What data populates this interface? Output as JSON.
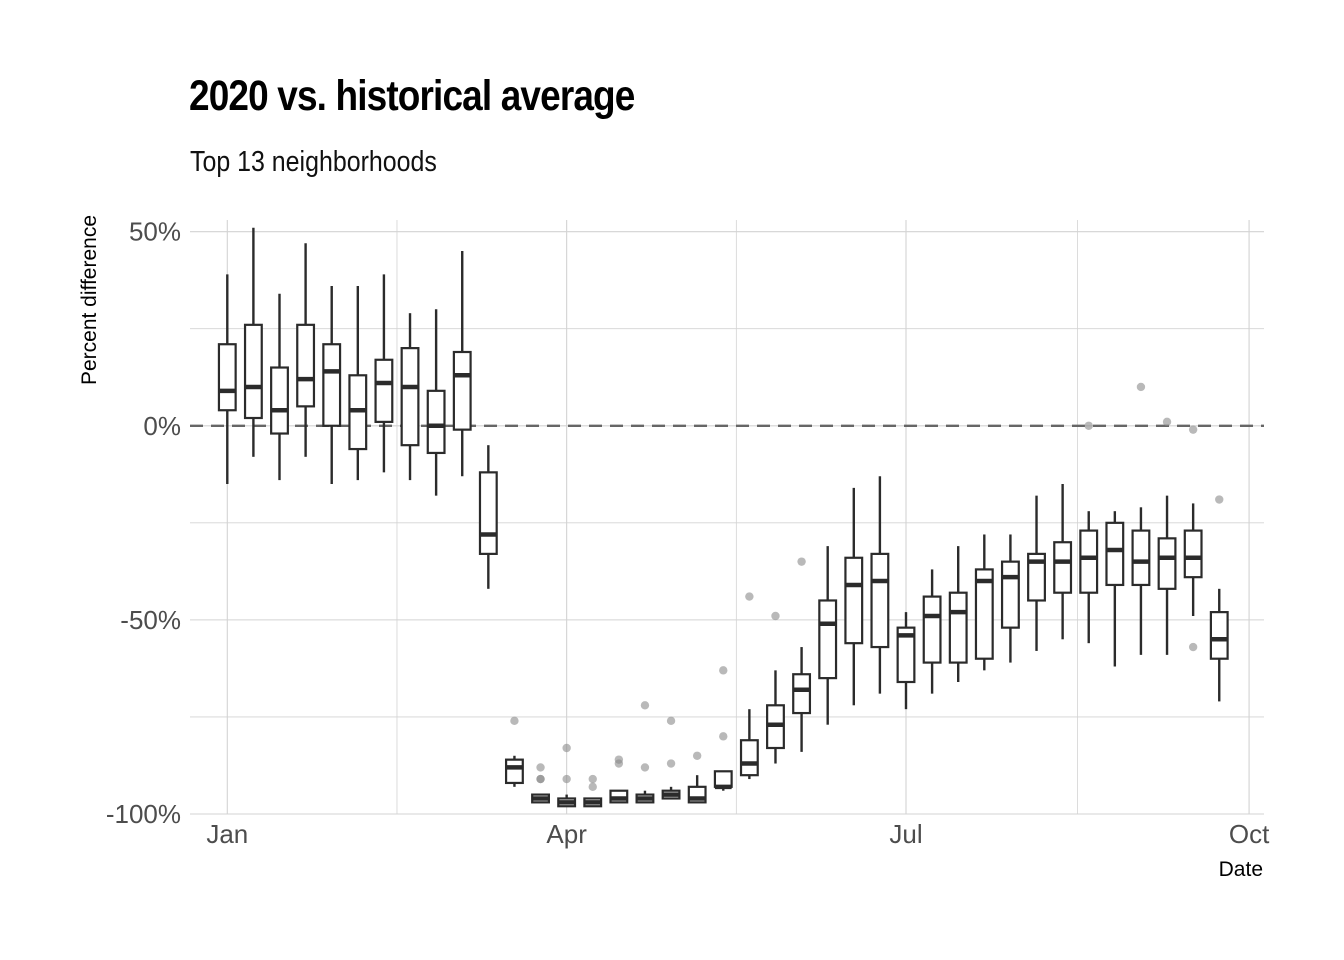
{
  "chart_data": {
    "type": "box",
    "title": "2020 vs. historical average",
    "subtitle": "Top 13 neighborhoods",
    "xlabel": "Date",
    "ylabel": "Percent difference",
    "x_ticks": [
      "Jan",
      "Apr",
      "Jul",
      "Oct"
    ],
    "x_tick_dates": [
      "2020-01-01",
      "2020-04-01",
      "2020-07-01",
      "2020-10-01"
    ],
    "x_range": [
      "2019-12-22",
      "2020-10-05"
    ],
    "y_ticks": [
      "50%",
      "0%",
      "-50%",
      "-100%"
    ],
    "y_tick_values": [
      50,
      0,
      -50,
      -100
    ],
    "ylim": [
      -100,
      53
    ],
    "reference_line": {
      "y": 0,
      "style": "dashed"
    },
    "grid": true,
    "colors": {
      "box": "#2b2b2b",
      "outlier": "#8a8a8a",
      "grid": "#d3d3d3",
      "reference": "#666666"
    },
    "boxes": [
      {
        "date": "2020-01-01",
        "min": -15,
        "q1": 4,
        "median": 9,
        "q3": 21,
        "max": 39,
        "outliers": []
      },
      {
        "date": "2020-01-08",
        "min": -8,
        "q1": 2,
        "median": 10,
        "q3": 26,
        "max": 51,
        "outliers": []
      },
      {
        "date": "2020-01-15",
        "min": -14,
        "q1": -2,
        "median": 4,
        "q3": 15,
        "max": 34,
        "outliers": []
      },
      {
        "date": "2020-01-22",
        "min": -8,
        "q1": 5,
        "median": 12,
        "q3": 26,
        "max": 47,
        "outliers": []
      },
      {
        "date": "2020-01-29",
        "min": -15,
        "q1": 0,
        "median": 14,
        "q3": 21,
        "max": 36,
        "outliers": []
      },
      {
        "date": "2020-02-05",
        "min": -14,
        "q1": -6,
        "median": 4,
        "q3": 13,
        "max": 36,
        "outliers": []
      },
      {
        "date": "2020-02-12",
        "min": -12,
        "q1": 1,
        "median": 11,
        "q3": 17,
        "max": 39,
        "outliers": []
      },
      {
        "date": "2020-02-19",
        "min": -14,
        "q1": -5,
        "median": 10,
        "q3": 20,
        "max": 29,
        "outliers": []
      },
      {
        "date": "2020-02-26",
        "min": -18,
        "q1": -7,
        "median": 0,
        "q3": 9,
        "max": 30,
        "outliers": []
      },
      {
        "date": "2020-03-04",
        "min": -13,
        "q1": -1,
        "median": 13,
        "q3": 19,
        "max": 45,
        "outliers": []
      },
      {
        "date": "2020-03-11",
        "min": -42,
        "q1": -33,
        "median": -28,
        "q3": -12,
        "max": -5,
        "outliers": []
      },
      {
        "date": "2020-03-18",
        "min": -93,
        "q1": -92,
        "median": -88,
        "q3": -86,
        "max": -85,
        "outliers": [
          -76
        ]
      },
      {
        "date": "2020-03-25",
        "min": -97,
        "q1": -97,
        "median": -96,
        "q3": -95,
        "max": -95,
        "outliers": [
          -88,
          -91,
          -91
        ]
      },
      {
        "date": "2020-04-01",
        "min": -98,
        "q1": -98,
        "median": -97,
        "q3": -96,
        "max": -95,
        "outliers": [
          -83,
          -91
        ]
      },
      {
        "date": "2020-04-08",
        "min": -98,
        "q1": -98,
        "median": -97,
        "q3": -96,
        "max": -96,
        "outliers": [
          -91,
          -93
        ]
      },
      {
        "date": "2020-04-15",
        "min": -97,
        "q1": -97,
        "median": -96,
        "q3": -94,
        "max": -94,
        "outliers": [
          -86,
          -87
        ]
      },
      {
        "date": "2020-04-22",
        "min": -97,
        "q1": -97,
        "median": -96,
        "q3": -95,
        "max": -94,
        "outliers": [
          -72,
          -88
        ]
      },
      {
        "date": "2020-04-29",
        "min": -96,
        "q1": -96,
        "median": -95,
        "q3": -94,
        "max": -93,
        "outliers": [
          -76,
          -87
        ]
      },
      {
        "date": "2020-05-06",
        "min": -97,
        "q1": -97,
        "median": -96,
        "q3": -93,
        "max": -90,
        "outliers": [
          -85
        ]
      },
      {
        "date": "2020-05-13",
        "min": -94,
        "q1": -93,
        "median": -93,
        "q3": -89,
        "max": -89,
        "outliers": [
          -63,
          -80
        ]
      },
      {
        "date": "2020-05-20",
        "min": -91,
        "q1": -90,
        "median": -87,
        "q3": -81,
        "max": -73,
        "outliers": [
          -44
        ]
      },
      {
        "date": "2020-05-27",
        "min": -87,
        "q1": -83,
        "median": -77,
        "q3": -72,
        "max": -63,
        "outliers": [
          -49
        ]
      },
      {
        "date": "2020-06-03",
        "min": -84,
        "q1": -74,
        "median": -68,
        "q3": -64,
        "max": -57,
        "outliers": [
          -35
        ]
      },
      {
        "date": "2020-06-10",
        "min": -77,
        "q1": -65,
        "median": -51,
        "q3": -45,
        "max": -31,
        "outliers": []
      },
      {
        "date": "2020-06-17",
        "min": -72,
        "q1": -56,
        "median": -41,
        "q3": -34,
        "max": -16,
        "outliers": []
      },
      {
        "date": "2020-06-24",
        "min": -69,
        "q1": -57,
        "median": -40,
        "q3": -33,
        "max": -13,
        "outliers": []
      },
      {
        "date": "2020-07-01",
        "min": -73,
        "q1": -66,
        "median": -54,
        "q3": -52,
        "max": -48,
        "outliers": []
      },
      {
        "date": "2020-07-08",
        "min": -69,
        "q1": -61,
        "median": -49,
        "q3": -44,
        "max": -37,
        "outliers": []
      },
      {
        "date": "2020-07-15",
        "min": -66,
        "q1": -61,
        "median": -48,
        "q3": -43,
        "max": -31,
        "outliers": []
      },
      {
        "date": "2020-07-22",
        "min": -63,
        "q1": -60,
        "median": -40,
        "q3": -37,
        "max": -28,
        "outliers": []
      },
      {
        "date": "2020-07-29",
        "min": -61,
        "q1": -52,
        "median": -39,
        "q3": -35,
        "max": -28,
        "outliers": []
      },
      {
        "date": "2020-08-05",
        "min": -58,
        "q1": -45,
        "median": -35,
        "q3": -33,
        "max": -18,
        "outliers": []
      },
      {
        "date": "2020-08-12",
        "min": -55,
        "q1": -43,
        "median": -35,
        "q3": -30,
        "max": -15,
        "outliers": []
      },
      {
        "date": "2020-08-19",
        "min": -56,
        "q1": -43,
        "median": -34,
        "q3": -27,
        "max": -22,
        "outliers": [
          0
        ]
      },
      {
        "date": "2020-08-26",
        "min": -62,
        "q1": -41,
        "median": -32,
        "q3": -25,
        "max": -22,
        "outliers": []
      },
      {
        "date": "2020-09-02",
        "min": -59,
        "q1": -41,
        "median": -35,
        "q3": -27,
        "max": -21,
        "outliers": [
          10
        ]
      },
      {
        "date": "2020-09-09",
        "min": -59,
        "q1": -42,
        "median": -34,
        "q3": -29,
        "max": -18,
        "outliers": [
          1
        ]
      },
      {
        "date": "2020-09-16",
        "min": -49,
        "q1": -39,
        "median": -34,
        "q3": -27,
        "max": -20,
        "outliers": [
          -1,
          -57
        ]
      },
      {
        "date": "2020-09-23",
        "min": -71,
        "q1": -60,
        "median": -55,
        "q3": -48,
        "max": -42,
        "outliers": [
          -19
        ]
      }
    ]
  }
}
